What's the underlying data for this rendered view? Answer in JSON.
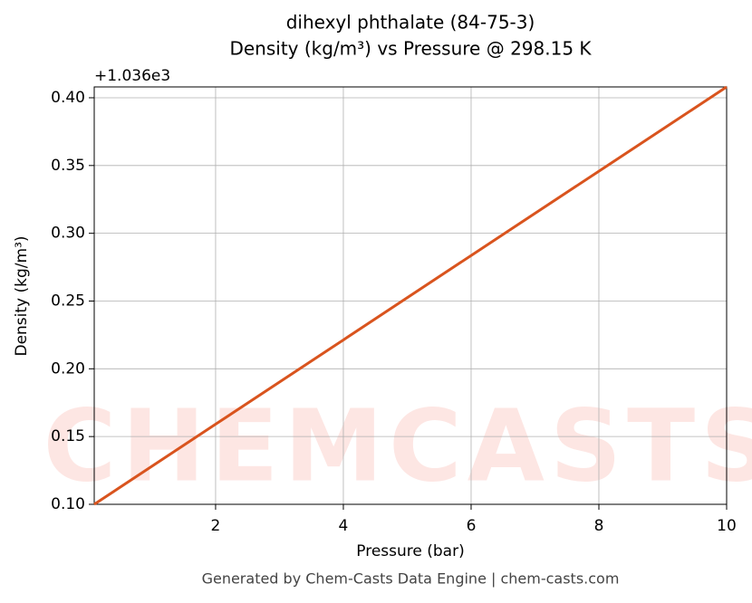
{
  "chart_data": {
    "type": "line",
    "title": [
      "dihexyl phthalate (84-75-3)",
      "Density (kg/m³) vs Pressure @ 298.15 K"
    ],
    "xlabel": "Pressure (bar)",
    "ylabel": "Density (kg/m³)",
    "y_offset_label": "+1.036e3",
    "watermark": "CHEMCASTS",
    "footer": "Generated by Chem-Casts Data Engine | chem-casts.com",
    "x": [
      0.1,
      2,
      4,
      6,
      8,
      10
    ],
    "series": [
      {
        "name": "Density",
        "color": "#d9541e",
        "values": [
          0.1,
          0.1591,
          0.2213,
          0.2836,
          0.3458,
          0.408
        ]
      }
    ],
    "xlim": [
      0.1,
      10
    ],
    "ylim": [
      0.1,
      0.408
    ],
    "xticks": [
      2,
      4,
      6,
      8,
      10
    ],
    "yticks": [
      {
        "value": 0.1,
        "label": "0.10"
      },
      {
        "value": 0.15,
        "label": "0.15"
      },
      {
        "value": 0.2,
        "label": "0.20"
      },
      {
        "value": 0.25,
        "label": "0.25"
      },
      {
        "value": 0.3,
        "label": "0.30"
      },
      {
        "value": 0.35,
        "label": "0.35"
      },
      {
        "value": 0.4,
        "label": "0.40"
      }
    ],
    "grid": true
  }
}
